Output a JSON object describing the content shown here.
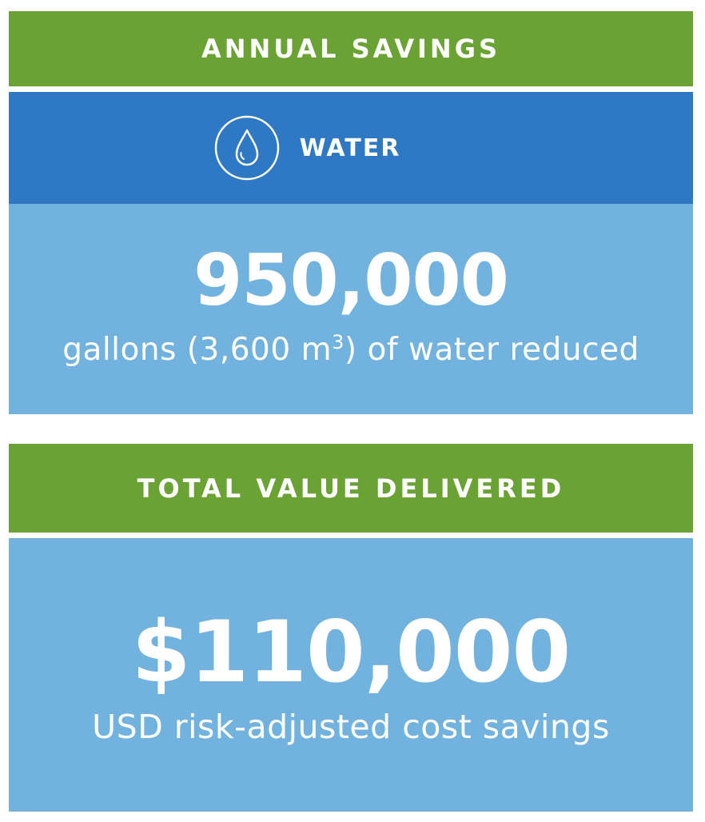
{
  "annual_savings": {
    "header": "ANNUAL SAVINGS",
    "category": {
      "icon": "water-drop-icon",
      "label": "WATER"
    },
    "value": "950,000",
    "caption_pre": "gallons (3,600 m",
    "caption_sup": "3",
    "caption_post": ") of water reduced"
  },
  "total_value": {
    "header": "TOTAL VALUE DELIVERED",
    "value": "$110,000",
    "caption": "USD risk-adjusted cost savings"
  },
  "colors": {
    "green": "#6aa233",
    "dark_blue": "#2f78c4",
    "light_blue": "#72b2df",
    "text": "#ffffff"
  }
}
